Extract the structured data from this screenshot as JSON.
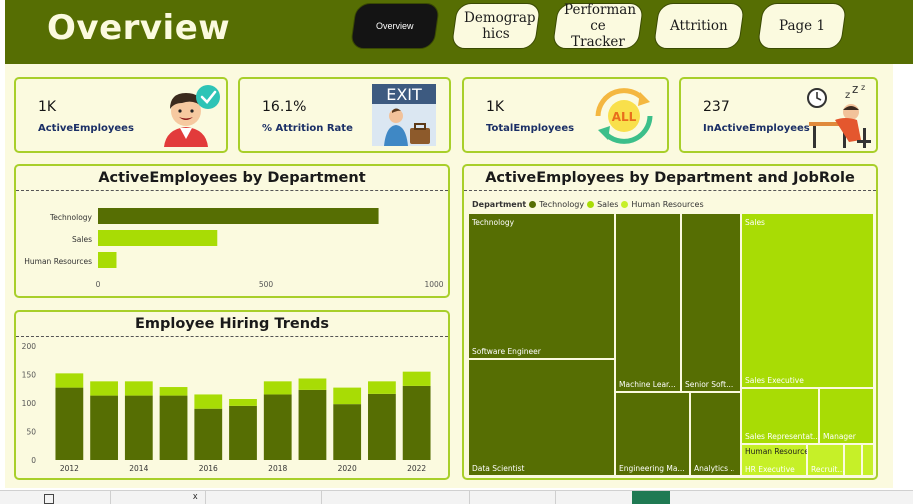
{
  "header": {
    "title": "Overview",
    "nav": [
      {
        "label": "Overview",
        "active": true
      },
      {
        "label": "Demograp hics",
        "active": false
      },
      {
        "label": "Performan ce Tracker",
        "active": false
      },
      {
        "label": "Attrition",
        "active": false
      },
      {
        "label": "Page 1",
        "active": false
      }
    ]
  },
  "kpis": [
    {
      "value": "1K",
      "label": "ActiveEmployees",
      "icon": "happy-employee-icon"
    },
    {
      "value": "16.1%",
      "label": "% Attrition Rate",
      "icon": "exit-sign-icon",
      "icon_text": "EXIT"
    },
    {
      "value": "1K",
      "label": "TotalEmployees",
      "icon": "all-cycle-icon",
      "icon_text": "ALL"
    },
    {
      "value": "237",
      "label": "InActiveEmployees",
      "icon": "sleeping-employee-icon"
    }
  ],
  "colors": {
    "header_bg": "#566e03",
    "canvas_bg": "#fbfadf",
    "dark_green": "#566e03",
    "lime": "#a8dc05",
    "light_lime": "#c6f028",
    "border": "#a8cf2a"
  },
  "chart_data": [
    {
      "type": "bar",
      "orientation": "horizontal",
      "title": "ActiveEmployees by Department",
      "categories": [
        "Technology",
        "Sales",
        "Human Resources"
      ],
      "values": [
        835,
        355,
        55
      ],
      "colors": [
        "#566e03",
        "#a8dc05",
        "#a8dc05"
      ],
      "xticks": [
        "0",
        "500",
        "1000"
      ],
      "xlim": [
        0,
        1000
      ]
    },
    {
      "type": "bar",
      "stacked": true,
      "title": "Employee Hiring Trends",
      "categories": [
        "2012",
        "2013",
        "2014",
        "2015",
        "2016",
        "2017",
        "2018",
        "2019",
        "2020",
        "2021",
        "2022"
      ],
      "xticks": [
        "2012",
        "2014",
        "2016",
        "2018",
        "2020",
        "2022"
      ],
      "yticks": [
        "0",
        "50",
        "100",
        "150",
        "200"
      ],
      "ylim": [
        0,
        200
      ],
      "series": [
        {
          "values": [
            127,
            113,
            113,
            113,
            90,
            95,
            115,
            123,
            98,
            116,
            130
          ],
          "color": "#566e03"
        },
        {
          "values": [
            25,
            25,
            25,
            15,
            25,
            12,
            23,
            20,
            29,
            22,
            25
          ],
          "color": "#a8dc05"
        }
      ]
    },
    {
      "type": "treemap",
      "title": "ActiveEmployees by Department and JobRole",
      "legend_title": "Department",
      "legend": [
        {
          "name": "Technology",
          "color": "#566e03"
        },
        {
          "name": "Sales",
          "color": "#a8dc05"
        },
        {
          "name": "Human Resources",
          "color": "#c6f028"
        }
      ],
      "groups": [
        {
          "name": "Technology",
          "labels": [
            "Software Engineer",
            "Data Scientist",
            "Machine Lear...",
            "Senior Soft...",
            "Engineering Ma...",
            "Analytics ..."
          ]
        },
        {
          "name": "Sales",
          "labels": [
            "Sales Executive",
            "Sales Representat...",
            "Manager"
          ]
        },
        {
          "name": "Human Resources",
          "labels": [
            "HR Executive",
            "Recruit..."
          ]
        }
      ]
    }
  ],
  "taskbar": {
    "tab_close": "x"
  }
}
